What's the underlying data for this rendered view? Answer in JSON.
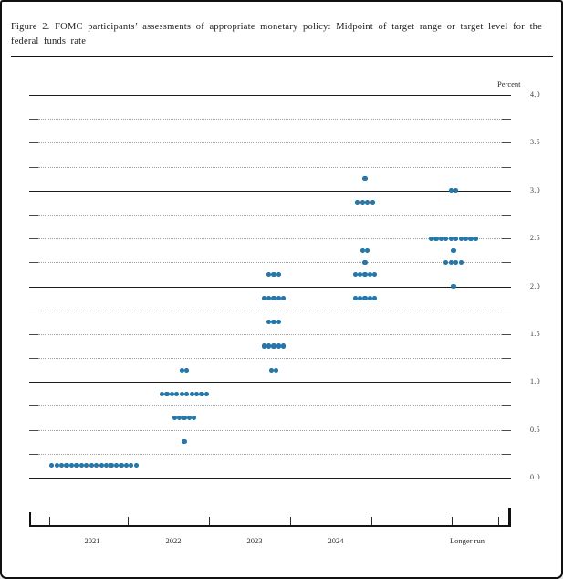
{
  "figure": {
    "title": "Figure 2.  FOMC participants’ assessments of appropriate monetary policy: Midpoint of target range or target level for the federal funds rate"
  },
  "chart_data": {
    "type": "scatter",
    "title": "FOMC participants’ assessments of appropriate monetary policy: Midpoint of target range or target level for the federal funds rate",
    "ylabel": "Percent",
    "ylim": [
      0.0,
      4.0
    ],
    "gridline_step": 0.25,
    "solid_gridlines_at": [
      0.0,
      1.0,
      2.0,
      3.0,
      4.0
    ],
    "y_tick_labels": [
      "4.0",
      "3.5",
      "3.0",
      "2.5",
      "2.0",
      "1.5",
      "1.0",
      "0.5",
      "0.0"
    ],
    "x_categories": [
      "2021",
      "2022",
      "2023",
      "2024",
      "Longer run"
    ],
    "dot_color": "#2578ad",
    "legend_position": "none",
    "series": [
      {
        "category": "2021",
        "dots": [
          {
            "rate": 0.125,
            "count": 18
          }
        ]
      },
      {
        "category": "2022",
        "dots": [
          {
            "rate": 1.125,
            "count": 2
          },
          {
            "rate": 0.875,
            "count": 10
          },
          {
            "rate": 0.625,
            "count": 5
          },
          {
            "rate": 0.375,
            "count": 1
          }
        ]
      },
      {
        "category": "2023",
        "dots": [
          {
            "rate": 2.125,
            "count": 3
          },
          {
            "rate": 1.875,
            "count": 5
          },
          {
            "rate": 1.625,
            "count": 3
          },
          {
            "rate": 1.375,
            "count": 5
          },
          {
            "rate": 1.125,
            "count": 2
          }
        ]
      },
      {
        "category": "2024",
        "dots": [
          {
            "rate": 3.125,
            "count": 1
          },
          {
            "rate": 2.875,
            "count": 4
          },
          {
            "rate": 2.375,
            "count": 2
          },
          {
            "rate": 2.25,
            "count": 1
          },
          {
            "rate": 2.125,
            "count": 5
          },
          {
            "rate": 1.875,
            "count": 5
          }
        ]
      },
      {
        "category": "Longer run",
        "dots": [
          {
            "rate": 3.0,
            "count": 2
          },
          {
            "rate": 2.5,
            "count": 10
          },
          {
            "rate": 2.375,
            "count": 1
          },
          {
            "rate": 2.25,
            "count": 4
          },
          {
            "rate": 2.0,
            "count": 1
          }
        ]
      }
    ]
  }
}
